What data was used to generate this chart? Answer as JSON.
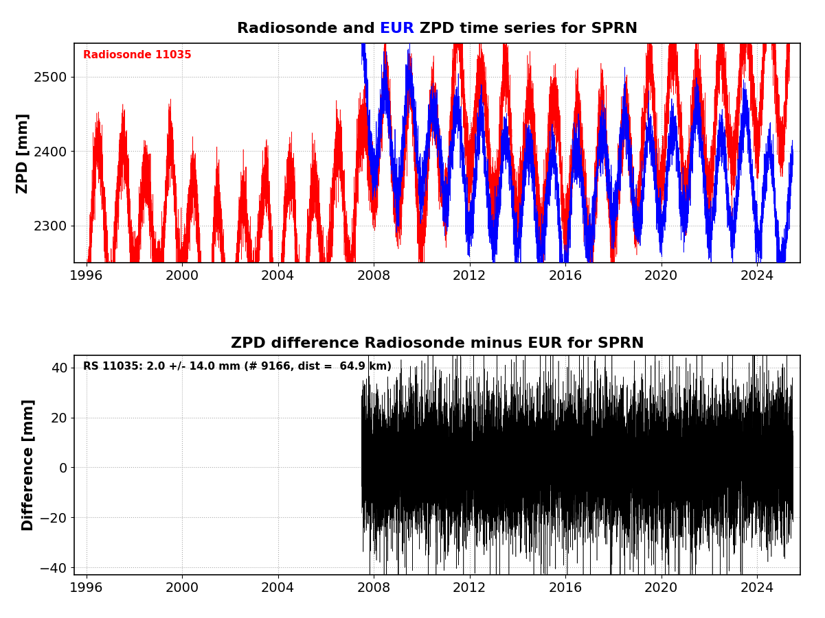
{
  "title1_prefix": "Radiosonde and ",
  "title1_eur": "EUR",
  "title1_suffix": " ZPD time series for SPRN",
  "title2": "ZPD difference Radiosonde minus EUR for SPRN",
  "ylabel1": "ZPD [mm]",
  "ylabel2": "Difference [mm]",
  "annotation1": "Radiosonde 11035",
  "annotation1_color": "red",
  "annotation2": "RS 11035: 2.0 +/- 14.0 mm (# 9166, dist =  64.9 km)",
  "annotation2_color": "black",
  "xmin": 1995.5,
  "xmax": 2025.8,
  "xticks": [
    1996,
    2000,
    2004,
    2008,
    2012,
    2016,
    2020,
    2024
  ],
  "ylim1": [
    2250,
    2545
  ],
  "yticks1": [
    2300,
    2400,
    2500
  ],
  "ylim2": [
    -43,
    45
  ],
  "yticks2": [
    -40,
    -20,
    0,
    20,
    40
  ],
  "grid_color": "#aaaaaa",
  "background_color": "white",
  "rs_color": "#ff0000",
  "eur_color": "#0000ff",
  "diff_color": "#000000",
  "title_fontsize": 16,
  "label_fontsize": 15,
  "tick_fontsize": 14,
  "annot_fontsize": 11,
  "rs_start": 1996.0,
  "eur_start": 2007.5,
  "data_end": 2025.5,
  "rs_base": 2370,
  "rs_amp": 85,
  "rs_noise": 22,
  "eur_base": 2368,
  "eur_amp": 72,
  "eur_noise": 18,
  "diff_mean": 2.0,
  "diff_std": 14.0,
  "seed": 42
}
